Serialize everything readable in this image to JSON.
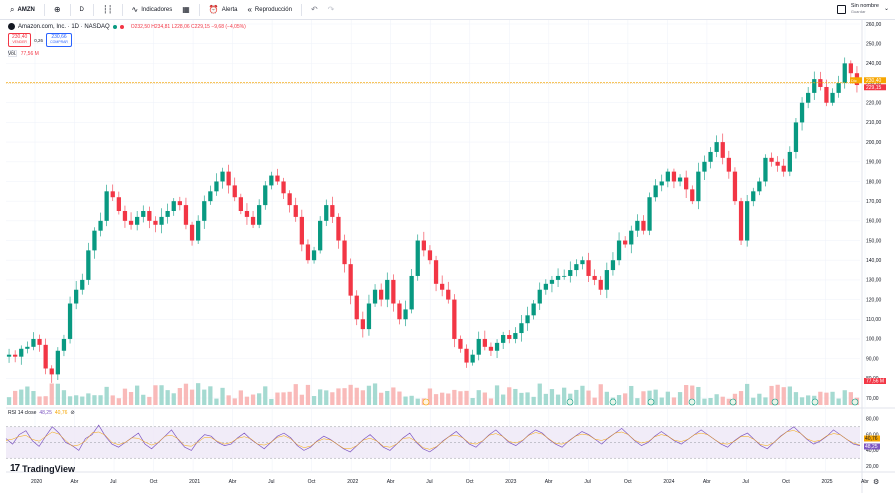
{
  "toolbar": {
    "symbol": "AMZN",
    "interval": "D",
    "indicators_label": "Indicadores",
    "alert_label": "Alerta",
    "replay_label": "Reproducción",
    "account_label": "Sin nombre",
    "account_sub": "Guardar"
  },
  "legend": {
    "title": "Amazon.com, Inc. · 1D · NASDAQ",
    "ohlc": "O232,50 H234,81 L228,06 C229,15 −9,68 (−4,05%)",
    "sell_price": "230,40",
    "sell_label": "VENDER",
    "spread": "0,26",
    "buy_price": "230,66",
    "buy_label": "COMPRAR",
    "volume_label": "Vol.",
    "volume_value": "77,56 M"
  },
  "rsi": {
    "label": "RSI 14 close",
    "value_a": "48,25",
    "value_b": "40,76",
    "marker_a": "40,76",
    "marker_b": "48,25"
  },
  "price_axis": {
    "labels": [
      "260,00",
      "250,00",
      "240,00",
      "230,00",
      "220,00",
      "210,00",
      "200,00",
      "190,00",
      "180,00",
      "170,00",
      "160,00",
      "150,00",
      "140,00",
      "130,00",
      "120,00",
      "110,00",
      "100,00",
      "90,00",
      "80,00",
      "70,00"
    ],
    "current_price": "230,40",
    "current_price_b": "229,15",
    "flag": "Dic",
    "volume_marker": "77,56 M"
  },
  "rsi_axis": {
    "labels": [
      "80,00",
      "60,00",
      "40,00",
      "20,00"
    ]
  },
  "time_axis": {
    "labels": [
      "2020",
      "Abr",
      "Jul",
      "Oct",
      "2021",
      "Abr",
      "Jul",
      "Oct",
      "2022",
      "Abr",
      "Jul",
      "Oct",
      "2023",
      "Abr",
      "Jul",
      "Oct",
      "2024",
      "Abr",
      "Jul",
      "Oct",
      "2025",
      "Abr"
    ]
  },
  "brand": {
    "name": "TradingView",
    "mark": "17"
  },
  "colors": {
    "up": "#089981",
    "down": "#f23645",
    "rsi_line": "#7e57c2",
    "rsi_fill": "#ede7f6",
    "accent": "#2962ff"
  },
  "chart_data": {
    "type": "candlestick",
    "series": [
      {
        "name": "AMZN",
        "values": [
          92,
          91,
          95,
          96,
          100,
          97,
          85,
          82,
          94,
          100,
          118,
          125,
          130,
          145,
          155,
          160,
          175,
          172,
          165,
          160,
          158,
          162,
          165,
          160,
          158,
          162,
          165,
          170,
          168,
          158,
          150,
          160,
          170,
          175,
          180,
          185,
          178,
          172,
          165,
          162,
          158,
          168,
          178,
          183,
          180,
          174,
          168,
          162,
          148,
          140,
          145,
          160,
          168,
          162,
          150,
          138,
          122,
          110,
          105,
          118,
          125,
          120,
          130,
          118,
          110,
          115,
          132,
          150,
          145,
          140,
          128,
          125,
          120,
          100,
          95,
          88,
          92,
          100,
          96,
          94,
          98,
          102,
          100,
          103,
          108,
          112,
          118,
          125,
          128,
          130,
          132,
          132,
          135,
          138,
          140,
          132,
          130,
          125,
          135,
          140,
          150,
          148,
          155,
          160,
          155,
          172,
          178,
          180,
          185,
          180,
          182,
          176,
          170,
          185,
          190,
          195,
          200,
          192,
          185,
          170,
          150,
          170,
          175,
          180,
          192,
          190,
          188,
          185,
          195,
          210,
          220,
          225,
          232,
          228,
          220,
          225,
          230,
          240,
          235,
          229
        ]
      }
    ],
    "volume": "77,56 M",
    "rsi": [
      55,
      48,
      60,
      65,
      52,
      45,
      58,
      70,
      62,
      50,
      46,
      40,
      55,
      60,
      72,
      58,
      48,
      44,
      50,
      56,
      62,
      48,
      42,
      50,
      58,
      66,
      54,
      44,
      40,
      52,
      60,
      58,
      50,
      46,
      48,
      56,
      62,
      54,
      48,
      42,
      50,
      58,
      62,
      56,
      46,
      40,
      44,
      52,
      58,
      54,
      48,
      42,
      38,
      46,
      54,
      60,
      52,
      44,
      40,
      48,
      56,
      62,
      50,
      42,
      38,
      44,
      52,
      58,
      64,
      56,
      48,
      44,
      52,
      60,
      66,
      58,
      50,
      46,
      52,
      60,
      66,
      62,
      54,
      48,
      44,
      52,
      58,
      64,
      60,
      54,
      48,
      56,
      62,
      68,
      60,
      52,
      46,
      50,
      58,
      64,
      58,
      52,
      48,
      54,
      60,
      66,
      60,
      54,
      48,
      44,
      52,
      58,
      62,
      54,
      46,
      42,
      50,
      58,
      64,
      70,
      62,
      54,
      48,
      52,
      58,
      66,
      60,
      54,
      48,
      46
    ]
  }
}
